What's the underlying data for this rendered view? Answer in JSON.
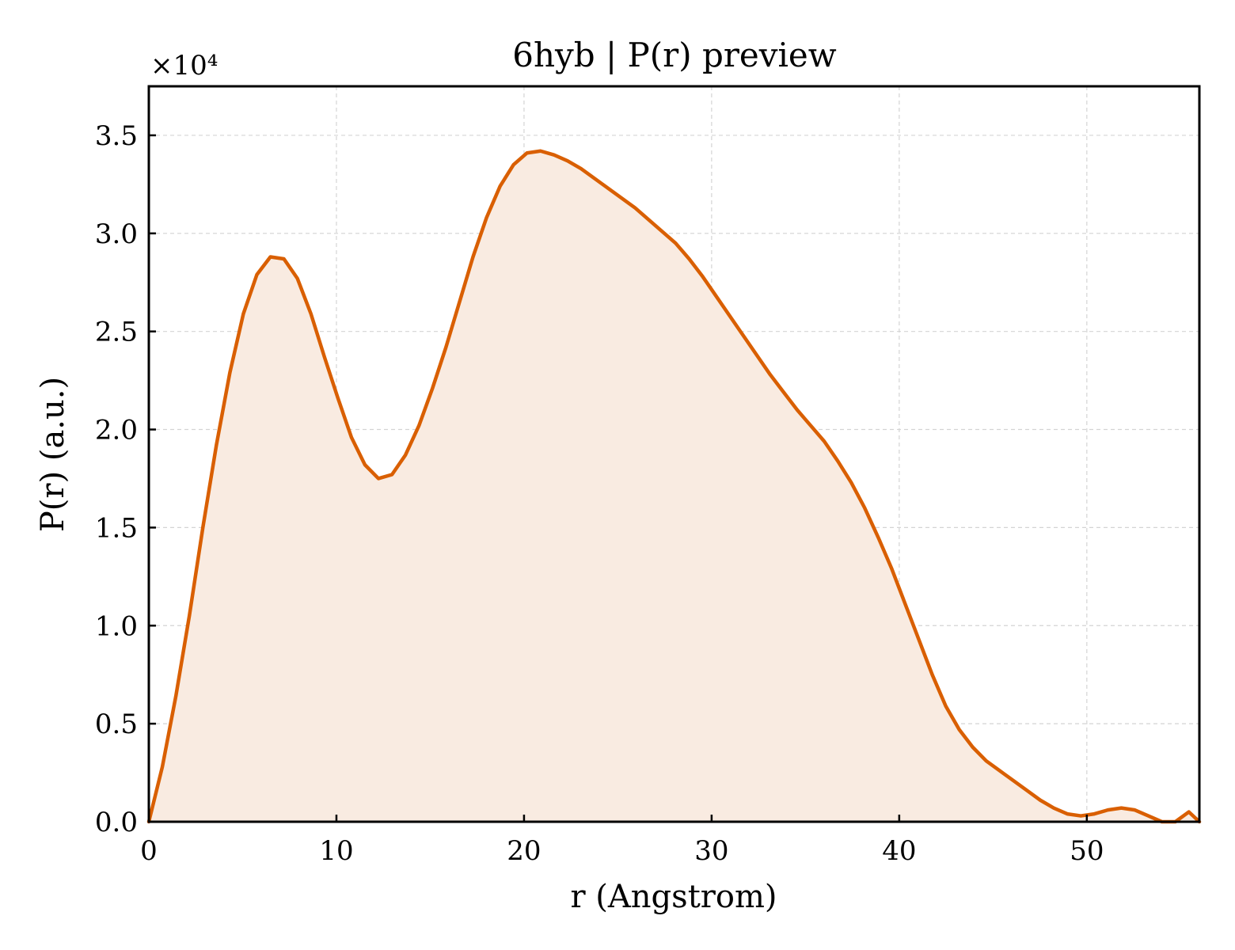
{
  "chart_data": {
    "type": "area",
    "title": "6hyb | P(r) preview",
    "xlabel": "r (Angstrom)",
    "ylabel": "P(r) (a.u.)",
    "y_offset_text": "×10⁴",
    "y_scale_factor": 10000,
    "xlim": [
      0,
      56
    ],
    "ylim": [
      0,
      37500
    ],
    "x_ticks": [
      0,
      10,
      20,
      30,
      40,
      50
    ],
    "x_tick_labels": [
      "0",
      "10",
      "20",
      "30",
      "40",
      "50"
    ],
    "y_ticks": [
      0,
      5000,
      10000,
      15000,
      20000,
      25000,
      30000,
      35000
    ],
    "y_tick_labels": [
      "0.0",
      "0.5",
      "1.0",
      "1.5",
      "2.0",
      "2.5",
      "3.0",
      "3.5"
    ],
    "grid": true,
    "line_color": "#d95f02",
    "fill_color": "#f9ebe1",
    "series": [
      {
        "x": [
          0,
          0.72,
          1.44,
          2.16,
          2.88,
          3.6,
          4.32,
          5.04,
          5.76,
          6.48,
          7.2,
          7.92,
          8.64,
          9.36,
          10.08,
          10.8,
          11.52,
          12.24,
          12.96,
          13.68,
          14.4,
          15.12,
          15.84,
          16.56,
          17.28,
          18.0,
          18.72,
          19.44,
          20.16,
          20.88,
          21.6,
          22.32,
          23.04,
          23.76,
          24.48,
          25.2,
          25.92,
          26.64,
          27.36,
          28.08,
          28.8,
          29.52,
          30.24,
          30.96,
          31.68,
          32.4,
          33.12,
          33.84,
          34.56,
          35.28,
          36.0,
          36.72,
          37.44,
          38.16,
          38.88,
          39.6,
          40.32,
          41.04,
          41.76,
          42.48,
          43.2,
          43.92,
          44.64,
          45.36,
          46.08,
          46.8,
          47.52,
          48.24,
          48.96,
          49.68,
          50.4,
          51.12,
          51.84,
          52.56,
          53.28,
          54.0,
          54.72,
          55.44,
          56.0
        ],
        "values": [
          0,
          2800,
          6400,
          10500,
          15000,
          19200,
          22900,
          25900,
          27900,
          28800,
          28700,
          27700,
          25900,
          23700,
          21600,
          19600,
          18200,
          17500,
          17700,
          18700,
          20200,
          22100,
          24200,
          26500,
          28800,
          30800,
          32400,
          33500,
          34100,
          34200,
          34000,
          33700,
          33300,
          32800,
          32300,
          31800,
          31300,
          30700,
          30100,
          29500,
          28700,
          27800,
          26800,
          25800,
          24800,
          23800,
          22800,
          21900,
          21000,
          20200,
          19400,
          18400,
          17300,
          16000,
          14500,
          12900,
          11100,
          9300,
          7500,
          5900,
          4700,
          3800,
          3100,
          2600,
          2100,
          1600,
          1100,
          700,
          400,
          300,
          400,
          600,
          700,
          600,
          300,
          0,
          0,
          500,
          0
        ]
      }
    ]
  }
}
